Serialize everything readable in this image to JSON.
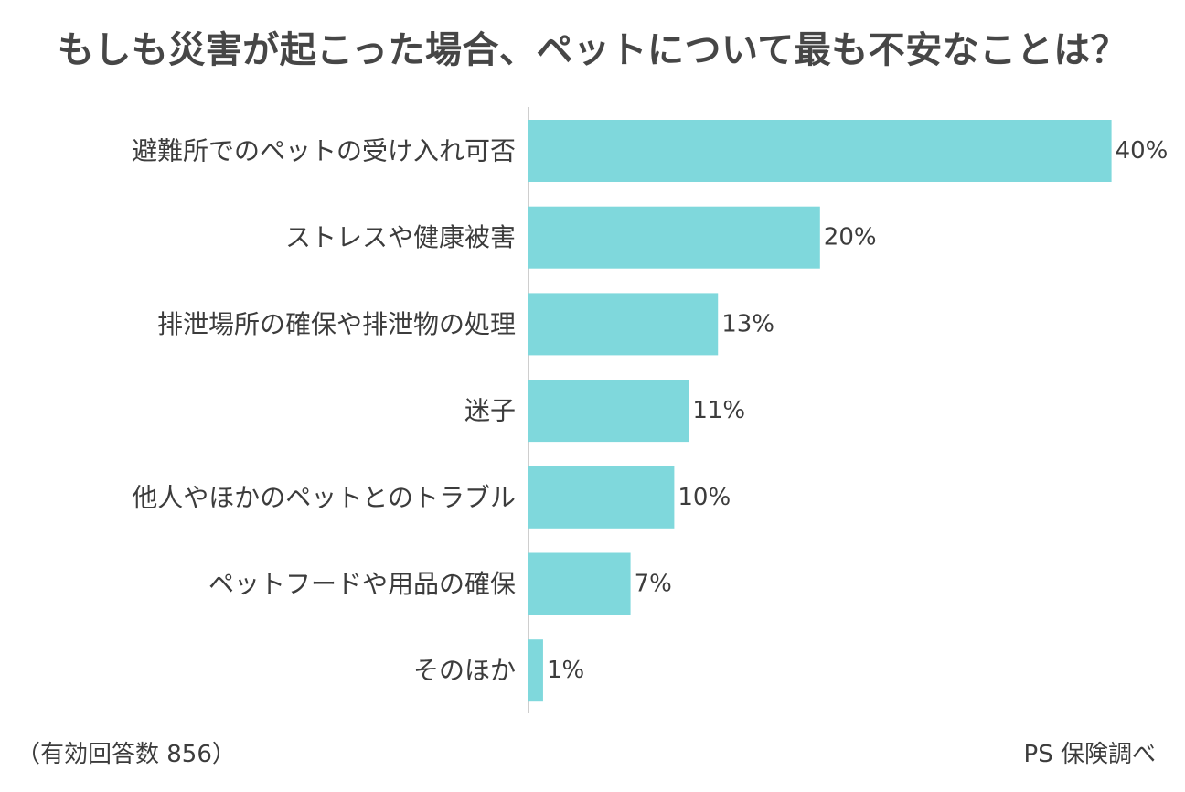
{
  "chart_data": {
    "type": "bar",
    "orientation": "horizontal",
    "title": "もしも災害が起こった場合、ペットについて最も不安なことは？",
    "categories": [
      "避難所でのペットの受け入れ可否",
      "ストレスや健康被害",
      "排泄場所の確保や排泄物の処理",
      "迷子",
      "他人やほかのペットとのトラブル",
      "ペットフードや用品の確保",
      "そのほか"
    ],
    "values": [
      40,
      20,
      13,
      11,
      10,
      7,
      1
    ],
    "value_labels": [
      "40%",
      "20%",
      "13%",
      "11%",
      "10%",
      "7%",
      "1%"
    ],
    "unit": "%",
    "xlim": [
      0,
      50
    ],
    "bar_color": "#7fd8dc",
    "axis_color": "#bdbdbd",
    "grid": false,
    "legend": "none"
  },
  "notes": {
    "sample": "（有効回答数 856）",
    "source": "PS 保険調べ"
  }
}
